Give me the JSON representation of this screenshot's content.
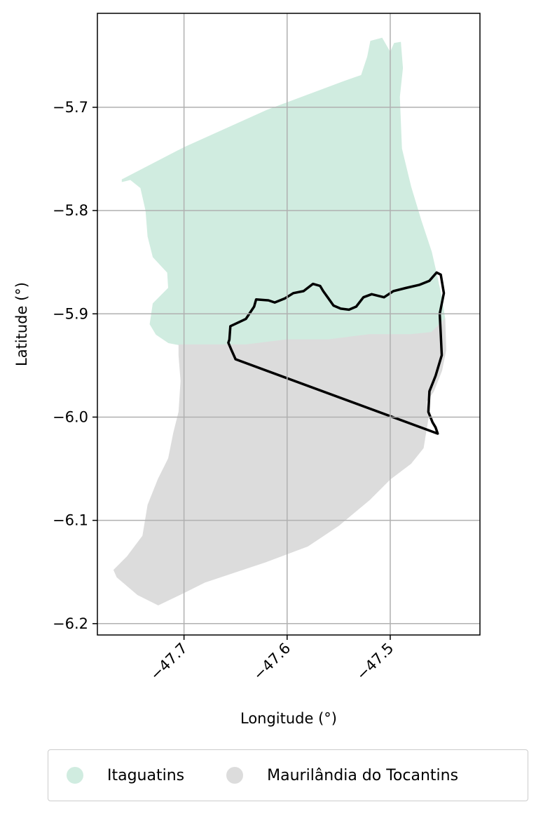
{
  "chart_data": {
    "type": "map",
    "xlabel": "Longitude (°)",
    "ylabel": "Latitude (°)",
    "xlim": [
      -47.784,
      -47.413
    ],
    "ylim": [
      -6.211,
      -5.609
    ],
    "xticks": [
      -47.7,
      -47.6,
      -47.5
    ],
    "yticks": [
      -5.7,
      -5.8,
      -5.9,
      -6.0,
      -6.1,
      -6.2
    ],
    "grid": true,
    "legend_position": "bottom-center",
    "series": [
      {
        "name": "Itaguatins",
        "color": "#d0ece0",
        "lonlat": [
          [
            -47.76,
            -5.77
          ],
          [
            -47.7,
            -5.739
          ],
          [
            -47.62,
            -5.703
          ],
          [
            -47.545,
            -5.675
          ],
          [
            -47.528,
            -5.669
          ],
          [
            -47.522,
            -5.651
          ],
          [
            -47.519,
            -5.636
          ],
          [
            -47.508,
            -5.633
          ],
          [
            -47.504,
            -5.64
          ],
          [
            -47.5,
            -5.647
          ],
          [
            -47.496,
            -5.638
          ],
          [
            -47.49,
            -5.637
          ],
          [
            -47.489,
            -5.65
          ],
          [
            -47.488,
            -5.662
          ],
          [
            -47.491,
            -5.69
          ],
          [
            -47.489,
            -5.74
          ],
          [
            -47.48,
            -5.777
          ],
          [
            -47.47,
            -5.81
          ],
          [
            -47.46,
            -5.84
          ],
          [
            -47.455,
            -5.862
          ],
          [
            -47.45,
            -5.885
          ],
          [
            -47.447,
            -5.905
          ],
          [
            -47.455,
            -5.912
          ],
          [
            -47.46,
            -5.918
          ],
          [
            -47.48,
            -5.92
          ],
          [
            -47.52,
            -5.92
          ],
          [
            -47.56,
            -5.925
          ],
          [
            -47.6,
            -5.925
          ],
          [
            -47.64,
            -5.93
          ],
          [
            -47.67,
            -5.93
          ],
          [
            -47.705,
            -5.93
          ],
          [
            -47.715,
            -5.928
          ],
          [
            -47.727,
            -5.92
          ],
          [
            -47.733,
            -5.91
          ],
          [
            -47.73,
            -5.89
          ],
          [
            -47.715,
            -5.875
          ],
          [
            -47.716,
            -5.86
          ],
          [
            -47.73,
            -5.845
          ],
          [
            -47.735,
            -5.825
          ],
          [
            -47.737,
            -5.8
          ],
          [
            -47.742,
            -5.778
          ],
          [
            -47.752,
            -5.77
          ],
          [
            -47.76,
            -5.772
          ]
        ]
      },
      {
        "name": "Maurilândia do Tocantins",
        "color": "#dcdcdc",
        "lonlat": [
          [
            -47.705,
            -5.93
          ],
          [
            -47.67,
            -5.93
          ],
          [
            -47.64,
            -5.93
          ],
          [
            -47.6,
            -5.925
          ],
          [
            -47.56,
            -5.925
          ],
          [
            -47.52,
            -5.92
          ],
          [
            -47.48,
            -5.92
          ],
          [
            -47.46,
            -5.918
          ],
          [
            -47.447,
            -5.905
          ],
          [
            -47.446,
            -5.935
          ],
          [
            -47.45,
            -5.955
          ],
          [
            -47.458,
            -5.975
          ],
          [
            -47.465,
            -5.985
          ],
          [
            -47.463,
            -6.0
          ],
          [
            -47.468,
            -6.03
          ],
          [
            -47.48,
            -6.045
          ],
          [
            -47.5,
            -6.06
          ],
          [
            -47.52,
            -6.08
          ],
          [
            -47.55,
            -6.105
          ],
          [
            -47.58,
            -6.125
          ],
          [
            -47.62,
            -6.14
          ],
          [
            -47.68,
            -6.16
          ],
          [
            -47.7,
            -6.17
          ],
          [
            -47.725,
            -6.182
          ],
          [
            -47.745,
            -6.172
          ],
          [
            -47.765,
            -6.155
          ],
          [
            -47.768,
            -6.148
          ],
          [
            -47.755,
            -6.135
          ],
          [
            -47.74,
            -6.115
          ],
          [
            -47.735,
            -6.085
          ],
          [
            -47.725,
            -6.06
          ],
          [
            -47.715,
            -6.04
          ],
          [
            -47.71,
            -6.015
          ],
          [
            -47.705,
            -5.995
          ],
          [
            -47.703,
            -5.965
          ],
          [
            -47.705,
            -5.94
          ]
        ]
      }
    ],
    "outline": {
      "color": "#000000",
      "lonlat": [
        [
          -47.656,
          -5.925
        ],
        [
          -47.655,
          -5.912
        ],
        [
          -47.64,
          -5.905
        ],
        [
          -47.632,
          -5.893
        ],
        [
          -47.63,
          -5.886
        ],
        [
          -47.618,
          -5.887
        ],
        [
          -47.612,
          -5.889
        ],
        [
          -47.602,
          -5.885
        ],
        [
          -47.594,
          -5.88
        ],
        [
          -47.584,
          -5.878
        ],
        [
          -47.575,
          -5.871
        ],
        [
          -47.568,
          -5.873
        ],
        [
          -47.565,
          -5.878
        ],
        [
          -47.56,
          -5.885
        ],
        [
          -47.555,
          -5.892
        ],
        [
          -47.548,
          -5.895
        ],
        [
          -47.54,
          -5.896
        ],
        [
          -47.533,
          -5.893
        ],
        [
          -47.526,
          -5.884
        ],
        [
          -47.518,
          -5.881
        ],
        [
          -47.506,
          -5.884
        ],
        [
          -47.497,
          -5.878
        ],
        [
          -47.485,
          -5.875
        ],
        [
          -47.472,
          -5.872
        ],
        [
          -47.462,
          -5.868
        ],
        [
          -47.455,
          -5.86
        ],
        [
          -47.451,
          -5.862
        ],
        [
          -47.448,
          -5.88
        ],
        [
          -47.452,
          -5.9
        ],
        [
          -47.451,
          -5.92
        ],
        [
          -47.45,
          -5.94
        ],
        [
          -47.456,
          -5.96
        ],
        [
          -47.462,
          -5.975
        ],
        [
          -47.463,
          -5.995
        ],
        [
          -47.459,
          -6.005
        ],
        [
          -47.456,
          -6.01
        ],
        [
          -47.454,
          -6.016
        ],
        [
          -47.65,
          -5.944
        ],
        [
          -47.654,
          -5.935
        ],
        [
          -47.657,
          -5.928
        ]
      ]
    }
  },
  "legend": {
    "items": [
      {
        "name": "Itaguatins",
        "color": "#d0ece0"
      },
      {
        "name": "Maurilândia do Tocantins",
        "color": "#dcdcdc"
      }
    ]
  }
}
